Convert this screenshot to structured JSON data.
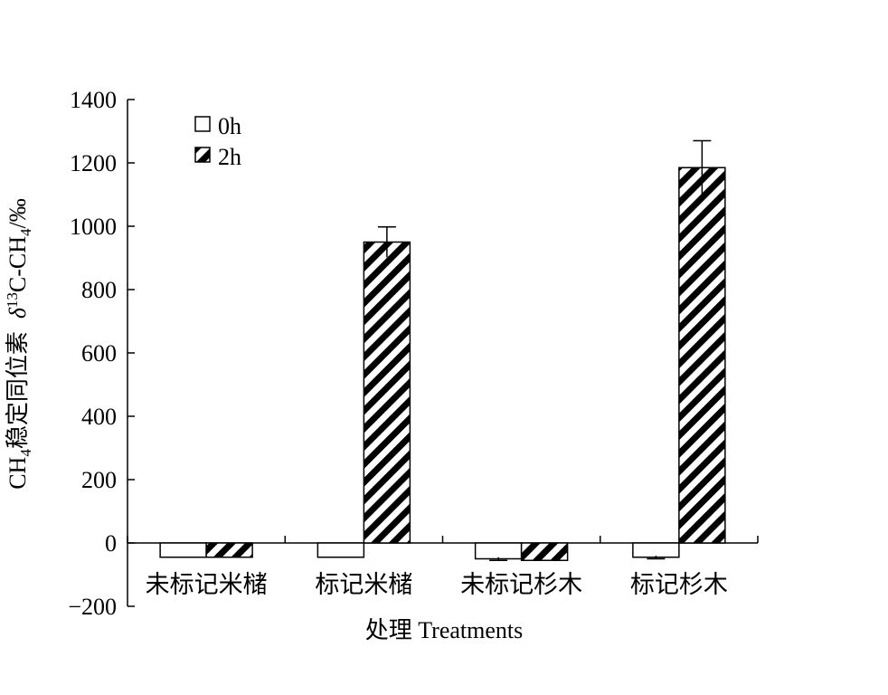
{
  "chart_data": {
    "type": "bar",
    "xlabel": "处理 Treatments",
    "ylabel_parts": {
      "main": "CH",
      "sub1": "4",
      "cn": "稳定同位素",
      "delta": "δ",
      "sup": "13",
      "rest": "C-CH",
      "sub2": "4",
      "unit": "/‰"
    },
    "ylim": [
      -200,
      1400
    ],
    "yticks": [
      -200,
      0,
      200,
      400,
      600,
      800,
      1000,
      1200,
      1400
    ],
    "ytick_labels": [
      "−200",
      "0",
      "200",
      "400",
      "600",
      "800",
      "1000",
      "1200",
      "1400"
    ],
    "categories": [
      "未标记米槠",
      "标记米槠",
      "未标记杉木",
      "标记杉木"
    ],
    "series": [
      {
        "name": "0h",
        "pattern": "none",
        "values": [
          -45,
          -45,
          -50,
          -45
        ],
        "errors": [
          0,
          0,
          5,
          5
        ]
      },
      {
        "name": "2h",
        "pattern": "diagonal-hatch",
        "values": [
          -45,
          950,
          -55,
          1185
        ],
        "errors": [
          0,
          48,
          0,
          85
        ]
      }
    ],
    "grid": false,
    "legend_position": "top-left"
  }
}
